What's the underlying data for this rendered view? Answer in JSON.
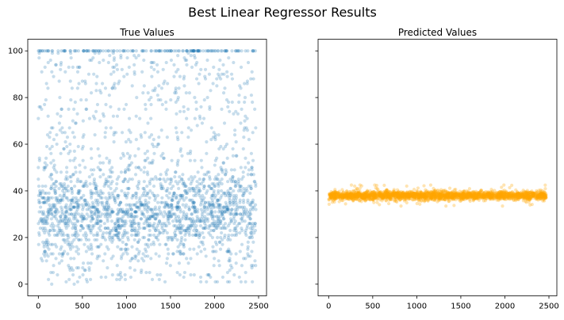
{
  "figure": {
    "suptitle": "Best Linear Regressor Results"
  },
  "chart_data": [
    {
      "type": "scatter",
      "title": "True Values",
      "xlabel": "",
      "ylabel": "",
      "xlim": [
        -120,
        2590
      ],
      "ylim": [
        -5,
        105
      ],
      "xticks": [
        0,
        500,
        1000,
        1500,
        2000,
        2500
      ],
      "yticks": [
        0,
        20,
        40,
        60,
        80,
        100
      ],
      "color": "#1f77b4",
      "alpha": 0.25,
      "n_points": 2470,
      "description": "Integer-like targets spread 0–100, densest around 20–45, with a cap row at 100",
      "series": [
        {
          "values_sample": [
            {
              "x": 20,
              "y": 40
            },
            {
              "x": 60,
              "y": 100
            },
            {
              "x": 100,
              "y": 27
            },
            {
              "x": 150,
              "y": 90
            },
            {
              "x": 200,
              "y": 18
            },
            {
              "x": 260,
              "y": 35
            },
            {
              "x": 320,
              "y": 62
            },
            {
              "x": 400,
              "y": 30
            },
            {
              "x": 480,
              "y": 45
            },
            {
              "x": 560,
              "y": 8
            },
            {
              "x": 640,
              "y": 100
            },
            {
              "x": 700,
              "y": 52
            },
            {
              "x": 800,
              "y": 28
            },
            {
              "x": 900,
              "y": 33
            },
            {
              "x": 1000,
              "y": 70
            },
            {
              "x": 1100,
              "y": 22
            },
            {
              "x": 1200,
              "y": 38
            },
            {
              "x": 1300,
              "y": 100
            },
            {
              "x": 1400,
              "y": 31
            },
            {
              "x": 1500,
              "y": 58
            },
            {
              "x": 1600,
              "y": 26
            },
            {
              "x": 1700,
              "y": 12
            },
            {
              "x": 1800,
              "y": 44
            },
            {
              "x": 1900,
              "y": 80
            },
            {
              "x": 2000,
              "y": 35
            },
            {
              "x": 2100,
              "y": 24
            },
            {
              "x": 2200,
              "y": 100
            },
            {
              "x": 2300,
              "y": 40
            },
            {
              "x": 2400,
              "y": 29
            },
            {
              "x": 2460,
              "y": 5
            }
          ]
        }
      ]
    },
    {
      "type": "scatter",
      "title": "Predicted Values",
      "xlabel": "",
      "ylabel": "",
      "xlim": [
        -120,
        2590
      ],
      "ylim": [
        -5,
        105
      ],
      "xticks": [
        0,
        500,
        1000,
        1500,
        2000,
        2500
      ],
      "yticks": [
        0,
        20,
        40,
        60,
        80,
        100
      ],
      "sharey": true,
      "color": "#ffa500",
      "alpha": 0.3,
      "n_points": 2470,
      "description": "Predictions clustered tightly in a band around 38 (range roughly 34–42)",
      "series": [
        {
          "values_sample": [
            {
              "x": 0,
              "y": 38
            },
            {
              "x": 100,
              "y": 37.5
            },
            {
              "x": 200,
              "y": 39
            },
            {
              "x": 300,
              "y": 37
            },
            {
              "x": 400,
              "y": 38.5
            },
            {
              "x": 500,
              "y": 38
            },
            {
              "x": 600,
              "y": 36.5
            },
            {
              "x": 700,
              "y": 38.2
            },
            {
              "x": 800,
              "y": 39.5
            },
            {
              "x": 900,
              "y": 37.8
            },
            {
              "x": 1000,
              "y": 38
            },
            {
              "x": 1100,
              "y": 40
            },
            {
              "x": 1200,
              "y": 37.4
            },
            {
              "x": 1300,
              "y": 38.6
            },
            {
              "x": 1400,
              "y": 38.1
            },
            {
              "x": 1500,
              "y": 36.9
            },
            {
              "x": 1600,
              "y": 39.2
            },
            {
              "x": 1700,
              "y": 38
            },
            {
              "x": 1800,
              "y": 37.6
            },
            {
              "x": 1900,
              "y": 38.8
            },
            {
              "x": 2000,
              "y": 38.3
            },
            {
              "x": 2100,
              "y": 37.2
            },
            {
              "x": 2200,
              "y": 39.7
            },
            {
              "x": 2300,
              "y": 38
            },
            {
              "x": 2400,
              "y": 37.9
            },
            {
              "x": 2470,
              "y": 38.4
            }
          ]
        }
      ]
    }
  ]
}
